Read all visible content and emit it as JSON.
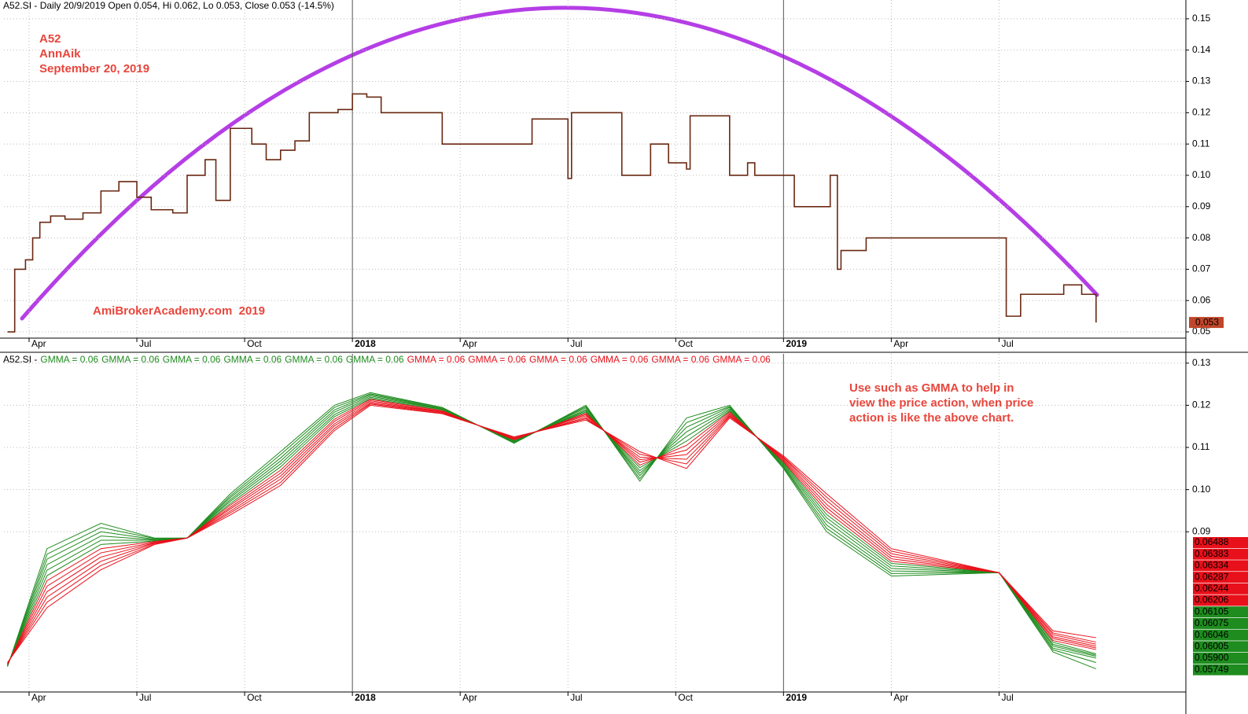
{
  "chart_data": [
    {
      "type": "line",
      "step": true,
      "title": "A52.SI - Daily 20/9/2019 Open 0.054, Hi 0.062, Lo 0.053, Close 0.053 (-14.5%)",
      "annotations": [
        "A52",
        "AnnAik",
        "September 20, 2019"
      ],
      "watermark": "AmiBrokerAcademy.com  2019",
      "last_price_label": "0.053",
      "color": "#6a2812",
      "x": [
        2.4,
        2.6,
        2.9,
        3.1,
        3.3,
        3.6,
        4.0,
        4.5,
        5.0,
        5.5,
        6.0,
        6.4,
        7.0,
        7.4,
        7.9,
        8.2,
        8.6,
        9.2,
        9.6,
        10.0,
        10.4,
        10.8,
        11.6,
        12.0,
        12.4,
        12.8,
        14.0,
        14.5,
        16.5,
        17.0,
        17.8,
        18.0,
        18.1,
        19.4,
        19.5,
        20.3,
        20.8,
        21.3,
        21.4,
        22.5,
        23.0,
        23.2,
        24.0,
        24.3,
        25.3,
        25.5,
        25.6,
        26.3,
        30.0,
        30.2,
        30.6,
        31.4,
        31.8,
        32.3,
        32.7
      ],
      "values": [
        0.05,
        0.07,
        0.073,
        0.08,
        0.085,
        0.087,
        0.086,
        0.088,
        0.095,
        0.098,
        0.093,
        0.089,
        0.088,
        0.1,
        0.105,
        0.092,
        0.115,
        0.11,
        0.105,
        0.108,
        0.111,
        0.12,
        0.121,
        0.126,
        0.125,
        0.12,
        0.12,
        0.11,
        0.11,
        0.118,
        0.118,
        0.099,
        0.12,
        0.12,
        0.1,
        0.11,
        0.104,
        0.102,
        0.119,
        0.1,
        0.104,
        0.1,
        0.1,
        0.09,
        0.1,
        0.07,
        0.076,
        0.08,
        0.08,
        0.055,
        0.062,
        0.062,
        0.065,
        0.062,
        0.053
      ],
      "xlim": [
        2.3,
        35.2
      ],
      "ylim": [
        0.048,
        0.156
      ],
      "xticks": [
        {
          "value": 3,
          "label": "Apr"
        },
        {
          "value": 6,
          "label": "Jul"
        },
        {
          "value": 9,
          "label": "Oct"
        },
        {
          "value": 12,
          "label": "2018"
        },
        {
          "value": 15,
          "label": "Apr"
        },
        {
          "value": 18,
          "label": "Jul"
        },
        {
          "value": 21,
          "label": "Oct"
        },
        {
          "value": 24,
          "label": "2019"
        },
        {
          "value": 27,
          "label": "Apr"
        },
        {
          "value": 30,
          "label": "Jul"
        }
      ],
      "yticks": [
        0.05,
        0.06,
        0.07,
        0.08,
        0.09,
        {
          "value": 0.1,
          "label": "0.10"
        },
        0.11,
        0.12,
        0.13,
        0.14,
        0.15
      ],
      "grid": true
    },
    {
      "type": "line",
      "title": "A52.SI -",
      "annotation_lines": [
        "Use such as GMMA to help in",
        "view the price action, when price",
        "action is like the above chart."
      ],
      "x": [
        2.4,
        3.5,
        5.0,
        6.5,
        7.4,
        8.6,
        10.0,
        11.5,
        12.5,
        14.5,
        16.5,
        18.5,
        20.0,
        21.3,
        22.5,
        24.0,
        25.2,
        27.0,
        30.0,
        31.5,
        32.7
      ],
      "series": [
        {
          "name": "GMMA = 0.06",
          "color": "#1e8c1e",
          "last_label": "0.05749",
          "values": [
            0.058,
            0.086,
            0.092,
            0.0885,
            0.0885,
            0.099,
            0.109,
            0.12,
            0.123,
            0.1195,
            0.111,
            0.12,
            0.102,
            0.117,
            0.12,
            0.105,
            0.09,
            0.0795,
            0.0803,
            0.0615,
            0.05749
          ]
        },
        {
          "name": "GMMA = 0.06",
          "color": "#1e8c1e",
          "last_label": "0.05900",
          "values": [
            0.0581,
            0.0847,
            0.091,
            0.0884,
            0.0885,
            0.0985,
            0.1083,
            0.1195,
            0.1227,
            0.1194,
            0.1111,
            0.1197,
            0.1026,
            0.1159,
            0.1197,
            0.1053,
            0.0908,
            0.0801,
            0.0803,
            0.062,
            0.059
          ]
        },
        {
          "name": "GMMA = 0.06",
          "color": "#1e8c1e",
          "last_label": "0.06005",
          "values": [
            0.0582,
            0.0835,
            0.09,
            0.0882,
            0.0885,
            0.0981,
            0.1075,
            0.1189,
            0.1225,
            0.1192,
            0.1113,
            0.1194,
            0.1033,
            0.1148,
            0.1195,
            0.1055,
            0.0916,
            0.0807,
            0.0803,
            0.0624,
            0.06005
          ]
        },
        {
          "name": "GMMA = 0.06",
          "color": "#1e8c1e",
          "last_label": "0.06046",
          "values": [
            0.0583,
            0.0822,
            0.089,
            0.0881,
            0.0885,
            0.0976,
            0.1068,
            0.1184,
            0.1222,
            0.1191,
            0.1114,
            0.119,
            0.1039,
            0.1137,
            0.1192,
            0.1058,
            0.0925,
            0.0813,
            0.0803,
            0.0629,
            0.06046
          ]
        },
        {
          "name": "GMMA = 0.06",
          "color": "#1e8c1e",
          "last_label": "0.06075",
          "values": [
            0.0584,
            0.0809,
            0.088,
            0.088,
            0.0885,
            0.0972,
            0.1061,
            0.1178,
            0.1219,
            0.119,
            0.1115,
            0.1187,
            0.1045,
            0.1126,
            0.1189,
            0.1061,
            0.0933,
            0.0819,
            0.0803,
            0.0633,
            0.06075
          ]
        },
        {
          "name": "GMMA = 0.06",
          "color": "#1e8c1e",
          "last_label": "0.06105",
          "values": [
            0.0585,
            0.0796,
            0.087,
            0.0878,
            0.0885,
            0.0967,
            0.1054,
            0.1173,
            0.1216,
            0.1188,
            0.1117,
            0.1184,
            0.1052,
            0.1115,
            0.1186,
            0.1064,
            0.0941,
            0.0825,
            0.0803,
            0.0638,
            0.06105
          ]
        },
        {
          "name": "GMMA = 0.06",
          "color": "#e8101a",
          "last_label": "0.06206",
          "values": [
            0.0585,
            0.0784,
            0.086,
            0.0877,
            0.0885,
            0.0963,
            0.1046,
            0.1167,
            0.1214,
            0.1187,
            0.1118,
            0.1181,
            0.1058,
            0.1105,
            0.1184,
            0.1066,
            0.0949,
            0.083,
            0.0803,
            0.0642,
            0.06206
          ]
        },
        {
          "name": "GMMA = 0.06",
          "color": "#e8101a",
          "last_label": "0.06244",
          "values": [
            0.0586,
            0.0771,
            0.085,
            0.0875,
            0.0885,
            0.0958,
            0.1039,
            0.1162,
            0.1211,
            0.1185,
            0.112,
            0.1178,
            0.1065,
            0.1094,
            0.1181,
            0.1069,
            0.0957,
            0.0836,
            0.0803,
            0.0647,
            0.06244
          ]
        },
        {
          "name": "GMMA = 0.06",
          "color": "#e8101a",
          "last_label": "0.06287",
          "values": [
            0.0587,
            0.0758,
            0.084,
            0.0874,
            0.0885,
            0.0954,
            0.1032,
            0.1156,
            0.1208,
            0.1184,
            0.1121,
            0.1175,
            0.1071,
            0.1083,
            0.1178,
            0.1072,
            0.0965,
            0.0842,
            0.0803,
            0.0651,
            0.06287
          ]
        },
        {
          "name": "GMMA = 0.06",
          "color": "#e8101a",
          "last_label": "0.06334",
          "values": [
            0.0588,
            0.0745,
            0.083,
            0.0873,
            0.0885,
            0.0949,
            0.1025,
            0.1151,
            0.1205,
            0.1183,
            0.1122,
            0.1171,
            0.1077,
            0.1072,
            0.1175,
            0.1075,
            0.0974,
            0.0848,
            0.0803,
            0.0656,
            0.06334
          ]
        },
        {
          "name": "GMMA = 0.06",
          "color": "#e8101a",
          "last_label": "0.06383",
          "values": [
            0.0589,
            0.0733,
            0.082,
            0.0871,
            0.0885,
            0.0945,
            0.1017,
            0.1145,
            0.1203,
            0.1181,
            0.1124,
            0.1168,
            0.1084,
            0.1061,
            0.1173,
            0.1077,
            0.0982,
            0.0854,
            0.0803,
            0.066,
            0.06383
          ]
        },
        {
          "name": "GMMA = 0.06",
          "color": "#e8101a",
          "last_label": "0.06488",
          "values": [
            0.059,
            0.072,
            0.081,
            0.087,
            0.0885,
            0.094,
            0.101,
            0.114,
            0.12,
            0.118,
            0.1125,
            0.1165,
            0.109,
            0.105,
            0.117,
            0.108,
            0.099,
            0.086,
            0.0803,
            0.0665,
            0.06488
          ]
        }
      ],
      "xlim": [
        2.3,
        35.2
      ],
      "ylim": [
        0.052,
        0.1322
      ],
      "xticks": [
        {
          "value": 3,
          "label": "Apr"
        },
        {
          "value": 6,
          "label": "Jul"
        },
        {
          "value": 9,
          "label": "Oct"
        },
        {
          "value": 12,
          "label": "2018"
        },
        {
          "value": 15,
          "label": "Apr"
        },
        {
          "value": 18,
          "label": "Jul"
        },
        {
          "value": 21,
          "label": "Oct"
        },
        {
          "value": 24,
          "label": "2019"
        },
        {
          "value": 27,
          "label": "Apr"
        },
        {
          "value": 30,
          "label": "Jul"
        }
      ],
      "yticks": [
        0.09,
        {
          "value": 0.1,
          "label": "0.10"
        },
        0.11,
        0.12,
        0.13
      ],
      "grid": true
    }
  ]
}
